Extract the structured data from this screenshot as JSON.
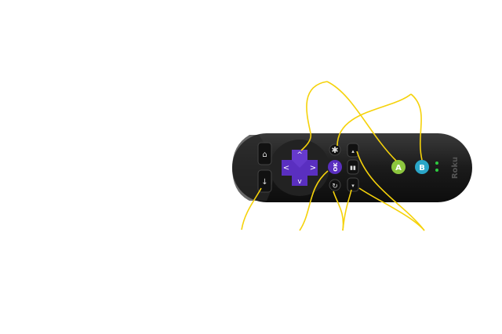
{
  "remote": {
    "brand_text": "Roku",
    "buttons": {
      "home_icon": "home-icon",
      "back_icon": "back-arrow-icon",
      "up_icon": "chevron-up-icon",
      "down_icon": "chevron-down-icon",
      "left_icon": "chevron-left-icon",
      "right_icon": "chevron-right-icon",
      "ok_label": "OK",
      "options_icon": "asterisk-icon",
      "replay_icon": "replay-icon",
      "rewind_icon": "rewind-icon",
      "play_pause_icon": "play-pause-icon",
      "fast_forward_icon": "fast-forward-icon",
      "a_label": "A",
      "b_label": "B"
    }
  },
  "colors": {
    "body": "#1b1b1b",
    "dpad": "#5a2fc0",
    "ok": "#5a2fc0",
    "a_button": "#8cc63e",
    "b_button": "#2aa6c8",
    "callout_lines": "#f5d20a",
    "indicator_leds": "#2ecc40"
  }
}
